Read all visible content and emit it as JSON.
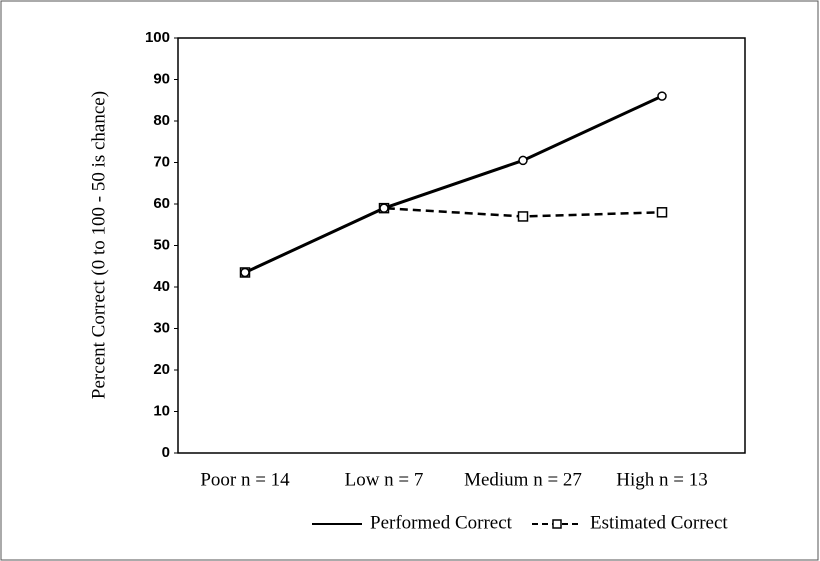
{
  "chart_data": {
    "type": "line",
    "y_label": "Percent Correct (0 to 100 - 50 is chance)",
    "categories": [
      "Poor n = 14",
      "Low n = 7",
      "Medium n = 27",
      "High n = 13"
    ],
    "series": [
      {
        "name": "Performed Correct",
        "color": "#000000",
        "values": [
          43.5,
          59,
          70.5,
          86
        ]
      },
      {
        "name": "Estimated Correct",
        "color": "#000000",
        "values": [
          43.5,
          59,
          57,
          58
        ]
      }
    ],
    "ylim": [
      0,
      100
    ],
    "yticks": [
      0,
      10,
      20,
      30,
      40,
      50,
      60,
      70,
      80,
      90,
      100
    ]
  }
}
